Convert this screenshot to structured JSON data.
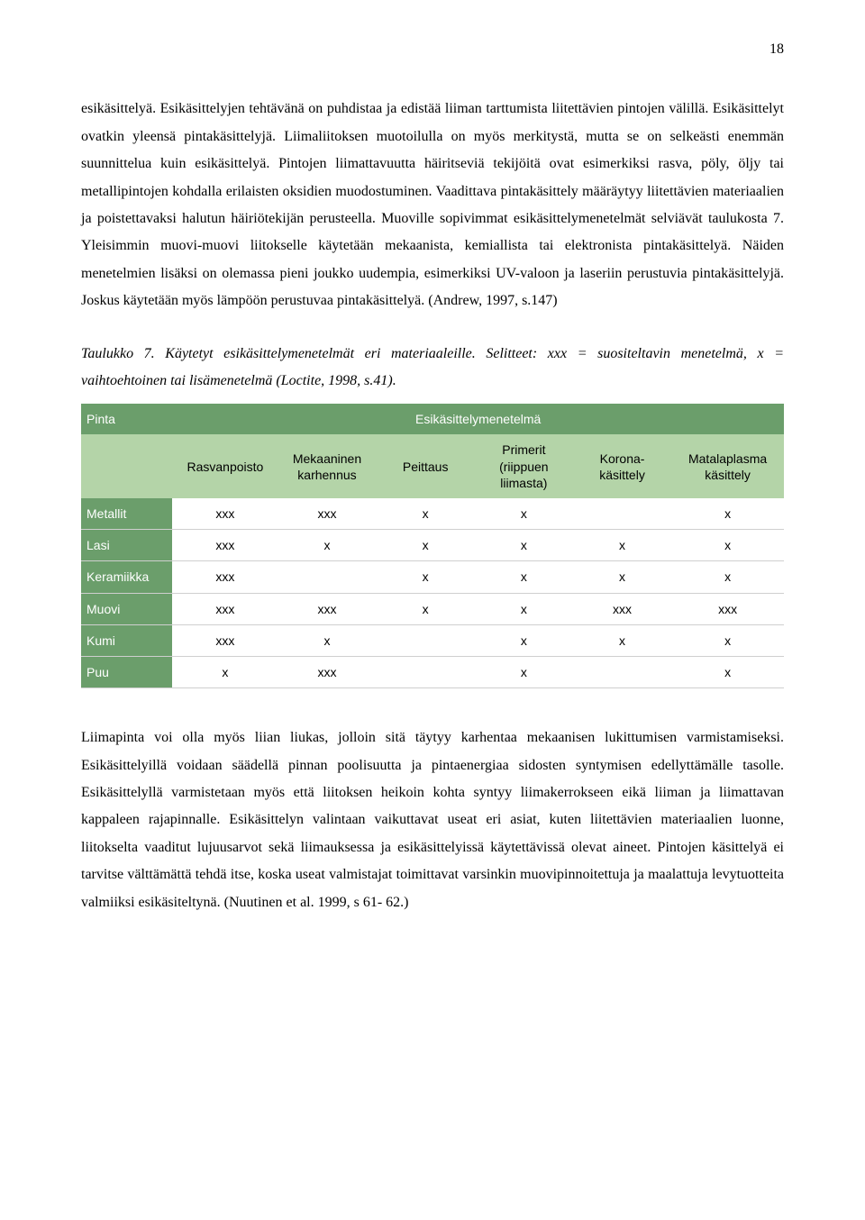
{
  "page_number": "18",
  "paragraph1": "esikäsittelyä. Esikäsittelyjen tehtävänä on puhdistaa ja edistää liiman tarttumista liitettävien pintojen välillä. Esikäsittelyt ovatkin yleensä pintakäsittelyjä. Liimaliitoksen muotoilulla on myös merkitystä, mutta se on selkeästi enemmän suunnittelua kuin esikäsittelyä. Pintojen liimattavuutta häiritseviä tekijöitä ovat esimerkiksi rasva, pöly, öljy tai metallipintojen kohdalla erilaisten oksidien muodostuminen. Vaadittava pintakäsittely määräytyy liitettävien materiaalien ja poistettavaksi halutun häiriötekijän perusteella. Muoville sopivimmat esikäsittelymenetelmät selviävät taulukosta 7. Yleisimmin muovi-muovi liitokselle käytetään mekaanista, kemiallista tai elektronista pintakäsittelyä. Näiden menetelmien lisäksi on olemassa pieni joukko uudempia, esimerkiksi UV-valoon ja laseriin perustuvia pintakäsittelyjä. Joskus käytetään myös lämpöön perustuvaa pintakäsittelyä. (Andrew, 1997, s.147)",
  "caption": "Taulukko 7. Käytetyt esikäsittelymenetelmät eri materiaaleille. Selitteet: xxx = suositeltavin menetelmä, x = vaihtoehtoinen tai lisämenetelmä (Loctite, 1998, s.41).",
  "table": {
    "h1_left": "Pinta",
    "h1_center": "Esikäsittelymenetelmä",
    "cols": [
      "Rasvanpoisto",
      "Mekaaninen karhennus",
      "Peittaus",
      "Primerit (riippuen liimasta)",
      "Korona-käsittely",
      "Matalaplasma käsittely"
    ],
    "rows": [
      {
        "label": "Metallit",
        "cells": [
          "xxx",
          "xxx",
          "x",
          "x",
          "",
          "x"
        ]
      },
      {
        "label": "Lasi",
        "cells": [
          "xxx",
          "x",
          "x",
          "x",
          "x",
          "x"
        ]
      },
      {
        "label": "Keramiikka",
        "cells": [
          "xxx",
          "",
          "x",
          "x",
          "x",
          "x"
        ]
      },
      {
        "label": "Muovi",
        "cells": [
          "xxx",
          "xxx",
          "x",
          "x",
          "xxx",
          "xxx"
        ]
      },
      {
        "label": "Kumi",
        "cells": [
          "xxx",
          "x",
          "",
          "x",
          "x",
          "x"
        ]
      },
      {
        "label": "Puu",
        "cells": [
          "x",
          "xxx",
          "",
          "x",
          "",
          "x"
        ]
      }
    ],
    "header_bg": "#6b9e6b",
    "header_fg": "#ffffff",
    "subheader_bg": "#b4d4a8",
    "rowlabel_bg": "#6b9e6b",
    "rowlabel_fg": "#ffffff",
    "border_color": "#cfcfcf"
  },
  "paragraph2": "Liimapinta voi olla myös liian liukas, jolloin sitä täytyy karhentaa mekaanisen lukittumisen varmistamiseksi. Esikäsittelyillä voidaan säädellä pinnan poolisuutta ja pintaenergiaa sidosten syntymisen edellyttämälle tasolle. Esikäsittelyllä varmistetaan myös että liitoksen heikoin kohta syntyy liimakerrokseen eikä liiman ja liimattavan kappaleen rajapinnalle. Esikäsittelyn valintaan vaikuttavat useat eri asiat, kuten liitettävien materiaalien luonne, liitokselta vaaditut lujuusarvot sekä liimauksessa ja esikäsittelyissä käytettävissä olevat aineet. Pintojen käsittelyä ei tarvitse välttämättä tehdä itse, koska useat valmistajat toimittavat varsinkin muovipinnoitettuja ja maalattuja levytuotteita valmiiksi esikäsiteltynä. (Nuutinen et al. 1999, s 61- 62.)"
}
